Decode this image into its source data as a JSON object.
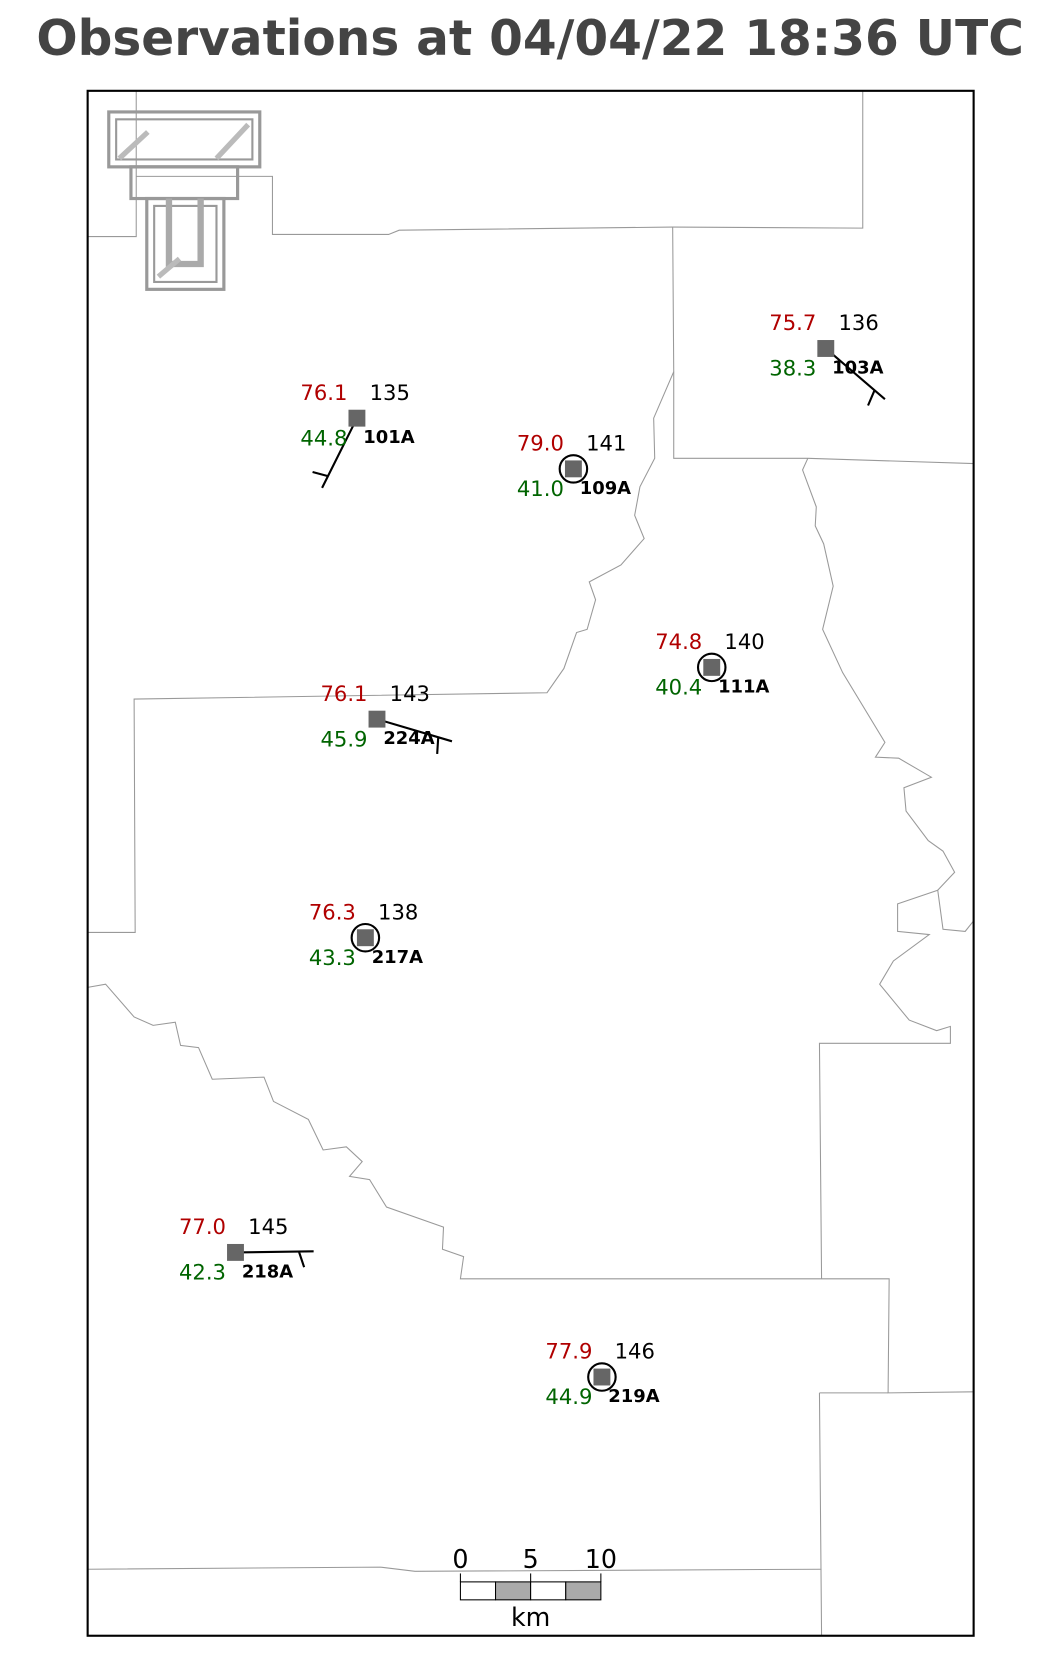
{
  "title": "Observations at 04/04/22 18:36 UTC",
  "stations": [
    {
      "id": "103A",
      "temperature": "75.7",
      "dewpoint": "38.3",
      "pressure": 136
    },
    {
      "id": "101A",
      "temperature": "76.1",
      "dewpoint": "44.8",
      "pressure": 135
    },
    {
      "id": "109A",
      "temperature": "79.0",
      "dewpoint": "41.0",
      "pressure": 141
    },
    {
      "id": "111A",
      "temperature": "74.8",
      "dewpoint": "40.4",
      "pressure": 140
    },
    {
      "id": "224A",
      "temperature": "76.1",
      "dewpoint": "45.9",
      "pressure": 143
    },
    {
      "id": "217A",
      "temperature": "76.3",
      "dewpoint": "43.3",
      "pressure": 138
    },
    {
      "id": "218A",
      "temperature": "77.0",
      "dewpoint": "42.3",
      "pressure": 145
    },
    {
      "id": "219A",
      "temperature": "77.9",
      "dewpoint": "44.9",
      "pressure": 146
    }
  ],
  "scale_bar": {
    "ticks": [
      0,
      5,
      10
    ],
    "unit": "km"
  }
}
